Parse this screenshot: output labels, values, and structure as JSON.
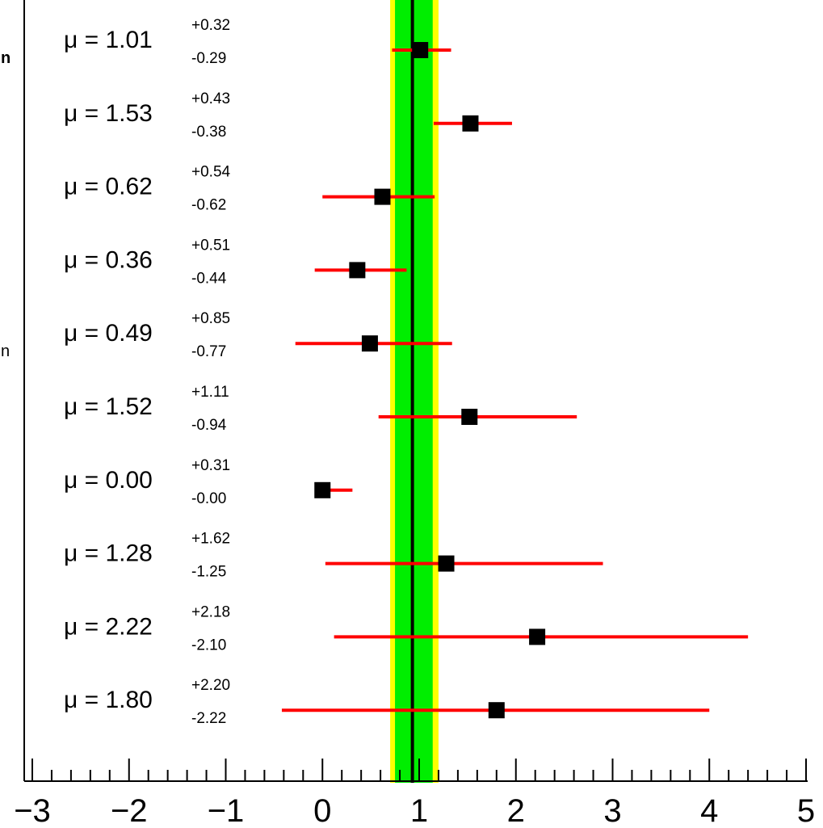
{
  "chart_data": {
    "type": "scatter",
    "title": "",
    "xlabel": "",
    "ylabel": "",
    "xlim": [
      -3,
      5
    ],
    "x_ticks": [
      "−3",
      "−2",
      "−1",
      "0",
      "1",
      "2",
      "3",
      "4",
      "5"
    ],
    "combined": {
      "value": 0.93,
      "band_1sigma": [
        0.75,
        1.14
      ],
      "band_2sigma": [
        0.7,
        1.2
      ],
      "line_color": "#000000",
      "band_1sigma_color": "#00ee00",
      "band_2sigma_color": "#ffff00"
    },
    "marker_color": "#000000",
    "errorbar_color": "#ff0000",
    "points": [
      {
        "mu": 1.01,
        "up": 0.32,
        "down": 0.29,
        "label_prefix": "μ = ",
        "value_text": "1.01",
        "up_text": "+0.32",
        "down_text": "-0.29"
      },
      {
        "mu": 1.53,
        "up": 0.43,
        "down": 0.38,
        "label_prefix": "μ = ",
        "value_text": "1.53",
        "up_text": "+0.43",
        "down_text": "-0.38"
      },
      {
        "mu": 0.62,
        "up": 0.54,
        "down": 0.62,
        "label_prefix": "μ = ",
        "value_text": "0.62",
        "up_text": "+0.54",
        "down_text": "-0.62"
      },
      {
        "mu": 0.36,
        "up": 0.51,
        "down": 0.44,
        "label_prefix": "μ = ",
        "value_text": "0.36",
        "up_text": "+0.51",
        "down_text": "-0.44"
      },
      {
        "mu": 0.49,
        "up": 0.85,
        "down": 0.77,
        "label_prefix": "μ = ",
        "value_text": "0.49",
        "up_text": "+0.85",
        "down_text": "-0.77"
      },
      {
        "mu": 1.52,
        "up": 1.11,
        "down": 0.94,
        "label_prefix": "μ = ",
        "value_text": "1.52",
        "up_text": "+1.11",
        "down_text": "-0.94"
      },
      {
        "mu": 0.0,
        "up": 0.31,
        "down": 0.0,
        "label_prefix": "μ = ",
        "value_text": "0.00",
        "up_text": "+0.31",
        "down_text": "-0.00"
      },
      {
        "mu": 1.28,
        "up": 1.62,
        "down": 1.25,
        "label_prefix": "μ = ",
        "value_text": "1.28",
        "up_text": "+1.62",
        "down_text": "-1.25"
      },
      {
        "mu": 2.22,
        "up": 2.18,
        "down": 2.1,
        "label_prefix": "μ = ",
        "value_text": "2.22",
        "up_text": "+2.18",
        "down_text": "-2.10"
      },
      {
        "mu": 1.8,
        "up": 2.2,
        "down": 2.22,
        "label_prefix": "μ = ",
        "value_text": "1.80",
        "up_text": "+2.20",
        "down_text": "-2.22"
      }
    ],
    "left_edge_text": [
      "n",
      "n"
    ]
  }
}
